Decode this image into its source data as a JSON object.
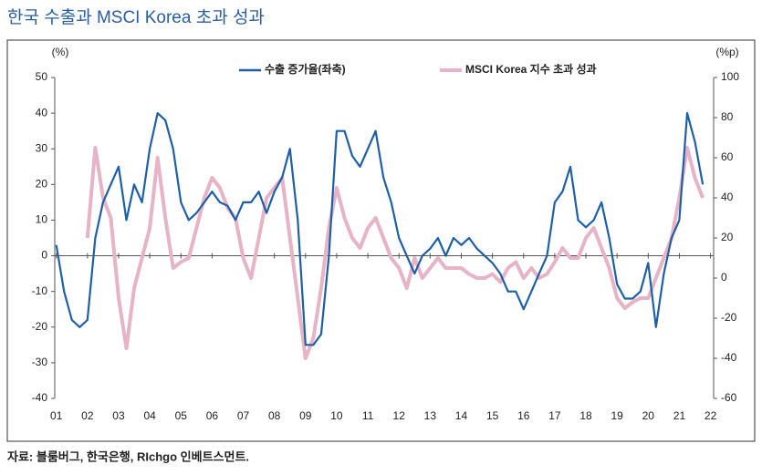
{
  "chart_data": {
    "type": "line",
    "title": "한국 수출과 MSCI Korea 초과 성과",
    "y_label": "(%)",
    "y2_label": "(%p)",
    "source": "자료: 블룸버그, 한국은행, RIchgo 인베트스먼트.",
    "x": [
      2001,
      2001.25,
      2001.5,
      2001.75,
      2002,
      2002.25,
      2002.5,
      2002.75,
      2003,
      2003.25,
      2003.5,
      2003.75,
      2004,
      2004.25,
      2004.5,
      2004.75,
      2005,
      2005.25,
      2005.5,
      2005.75,
      2006,
      2006.25,
      2006.5,
      2006.75,
      2007,
      2007.25,
      2007.5,
      2007.75,
      2008,
      2008.25,
      2008.5,
      2008.75,
      2009,
      2009.25,
      2009.5,
      2009.75,
      2010,
      2010.25,
      2010.5,
      2010.75,
      2011,
      2011.25,
      2011.5,
      2011.75,
      2012,
      2012.25,
      2012.5,
      2012.75,
      2013,
      2013.25,
      2013.5,
      2013.75,
      2014,
      2014.25,
      2014.5,
      2014.75,
      2015,
      2015.25,
      2015.5,
      2015.75,
      2016,
      2016.25,
      2016.5,
      2016.75,
      2017,
      2017.25,
      2017.5,
      2017.75,
      2018,
      2018.25,
      2018.5,
      2018.75,
      2019,
      2019.25,
      2019.5,
      2019.75,
      2020,
      2020.25,
      2020.5,
      2020.75,
      2021,
      2021.25,
      2021.5,
      2021.75
    ],
    "xlim": [
      2000.95,
      2022.1
    ],
    "xticks": [
      {
        "value": 2001,
        "label": "01"
      },
      {
        "value": 2002,
        "label": "02"
      },
      {
        "value": 2003,
        "label": "03"
      },
      {
        "value": 2004,
        "label": "04"
      },
      {
        "value": 2005,
        "label": "05"
      },
      {
        "value": 2006,
        "label": "06"
      },
      {
        "value": 2007,
        "label": "07"
      },
      {
        "value": 2008,
        "label": "08"
      },
      {
        "value": 2009,
        "label": "09"
      },
      {
        "value": 2010,
        "label": "10"
      },
      {
        "value": 2011,
        "label": "11"
      },
      {
        "value": 2012,
        "label": "12"
      },
      {
        "value": 2013,
        "label": "13"
      },
      {
        "value": 2014,
        "label": "14"
      },
      {
        "value": 2015,
        "label": "15"
      },
      {
        "value": 2016,
        "label": "16"
      },
      {
        "value": 2017,
        "label": "17"
      },
      {
        "value": 2018,
        "label": "18"
      },
      {
        "value": 2019,
        "label": "19"
      },
      {
        "value": 2020,
        "label": "20"
      },
      {
        "value": 2021,
        "label": "21"
      },
      {
        "value": 2022,
        "label": "22"
      }
    ],
    "ylim": [
      -40,
      50
    ],
    "yticks": [
      -40,
      -30,
      -20,
      -10,
      0,
      10,
      20,
      30,
      40,
      50
    ],
    "y2lim": [
      -60,
      100
    ],
    "y2ticks": [
      -60,
      -40,
      -20,
      0,
      20,
      40,
      60,
      80,
      100
    ],
    "series": [
      {
        "name": "수출 증가율(좌축)",
        "color": "#1f5fa6",
        "axis": "y",
        "values": [
          3,
          -10,
          -18,
          -20,
          -18,
          5,
          15,
          20,
          25,
          10,
          20,
          15,
          30,
          40,
          38,
          30,
          15,
          10,
          12,
          15,
          18,
          15,
          14,
          10,
          15,
          15,
          18,
          12,
          18,
          22,
          30,
          10,
          -25,
          -25,
          -22,
          0,
          35,
          35,
          28,
          25,
          30,
          35,
          22,
          15,
          5,
          0,
          -5,
          0,
          2,
          5,
          0,
          5,
          3,
          5,
          2,
          0,
          -2,
          -5,
          -10,
          -10,
          -15,
          -10,
          -5,
          0,
          15,
          18,
          25,
          10,
          8,
          10,
          15,
          5,
          -8,
          -12,
          -12,
          -10,
          -2,
          -20,
          -5,
          5,
          10,
          40,
          32,
          20
        ]
      },
      {
        "name": "MSCI Korea 지수 초과 성과",
        "color": "#e7b3c6",
        "axis": "y2",
        "values": [
          null,
          null,
          null,
          null,
          20,
          65,
          40,
          30,
          -10,
          -35,
          -5,
          10,
          25,
          60,
          30,
          5,
          8,
          10,
          25,
          40,
          50,
          45,
          35,
          30,
          10,
          0,
          20,
          40,
          45,
          50,
          20,
          -10,
          -40,
          -30,
          -5,
          25,
          45,
          30,
          20,
          15,
          25,
          30,
          20,
          10,
          5,
          -5,
          10,
          0,
          5,
          10,
          5,
          5,
          5,
          2,
          0,
          0,
          2,
          -2,
          5,
          8,
          0,
          5,
          0,
          2,
          8,
          15,
          10,
          10,
          20,
          25,
          15,
          5,
          -10,
          -15,
          -12,
          -10,
          -10,
          0,
          10,
          20,
          40,
          65,
          50,
          40
        ]
      }
    ]
  }
}
